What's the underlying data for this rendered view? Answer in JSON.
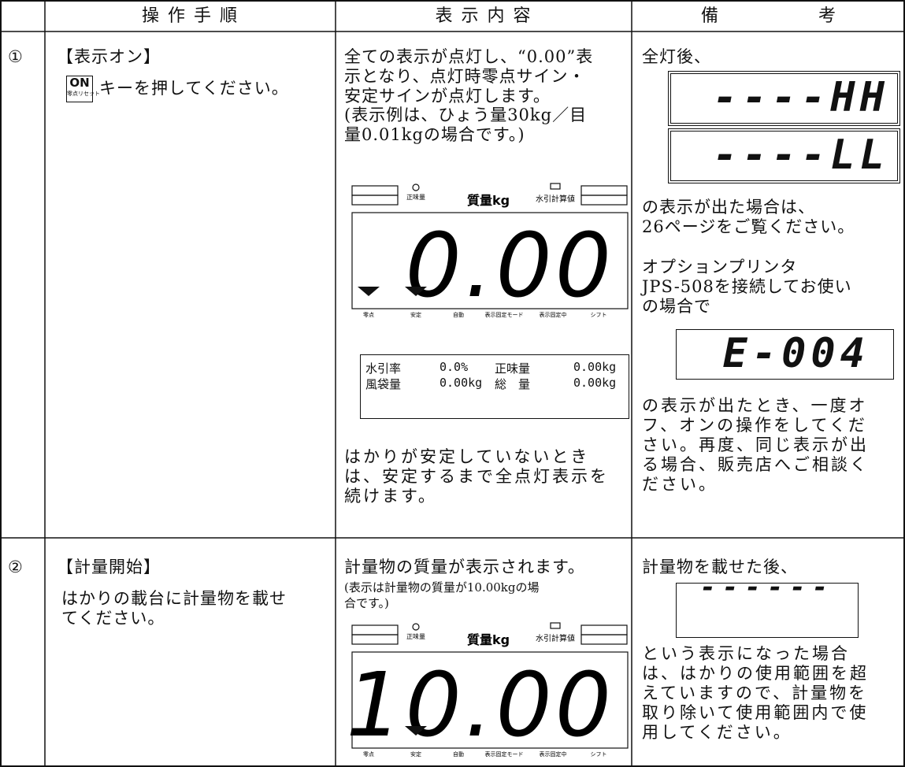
{
  "table": {
    "header": [
      "操 作 手 順",
      "表 示 内 容",
      "備 考"
    ],
    "panel_labels": {
      "net": "正味量",
      "mass": "質量kg",
      "water": "水引計算値",
      "bottom": [
        "零点",
        "安定",
        "自動",
        "表示固定モード",
        "表示固定中",
        "シフト"
      ]
    },
    "rows": [
      {
        "number": "①",
        "step": {
          "title": "【表示オン】",
          "key": "ON",
          "key_sub": "零点リセット",
          "text": "キーを押してください。"
        },
        "display": {
          "lines": [
            "全ての表示が点灯し、“0.00”表",
            "示となり、点灯時零点サイン・",
            "安定サインが点灯します。"
          ],
          "note": [
            " (表示例は、ひょう量30kg／目",
            "量0.01kgの場合です。)"
          ],
          "reading": "0.00",
          "printout": [
            [
              "水引率",
              "0.0%",
              "正味量",
              "0.00kg"
            ],
            [
              "風袋量",
              "0.00kg",
              "総　量",
              "0.00kg"
            ]
          ],
          "after": [
            "はかりが安定していないとき",
            "は、安定するまで全点灯表示を",
            "続けます。"
          ]
        },
        "remarks": {
          "intro": "全灯後、",
          "errors": [
            "----HH",
            "----LL"
          ],
          "p1": [
            "の表示が出た場合は、",
            "26ページをご覧ください。"
          ],
          "p2": [
            "オプションプリンタ",
            "JPS-508を接続してお使い",
            "の場合で"
          ],
          "error2": "E-004",
          "p3": [
            "の表示が出たとき、一度オ",
            "フ、オンの操作をしてくだ",
            "さい。再度、同じ表示が出",
            "る場合、販売店へご相談く",
            "ださい。"
          ]
        }
      },
      {
        "number": "②",
        "step": {
          "title": "【計量開始】",
          "lines": [
            "はかりの載台に計量物を載せ",
            "てください。"
          ]
        },
        "display": {
          "lines": [
            "計量物の質量が表示されます。"
          ],
          "note": [
            "(表示は計量物の質量が10.00kgの場",
            "合です。)"
          ],
          "reading": "10.00"
        },
        "remarks": {
          "intro": "計量物を載せた後、",
          "error": "------",
          "p1": [
            "という表示になった場合",
            "は、はかりの使用範囲を超",
            "えていますので、計量物を",
            "取り除いて使用範囲内で使",
            "用してください。"
          ]
        }
      }
    ]
  }
}
